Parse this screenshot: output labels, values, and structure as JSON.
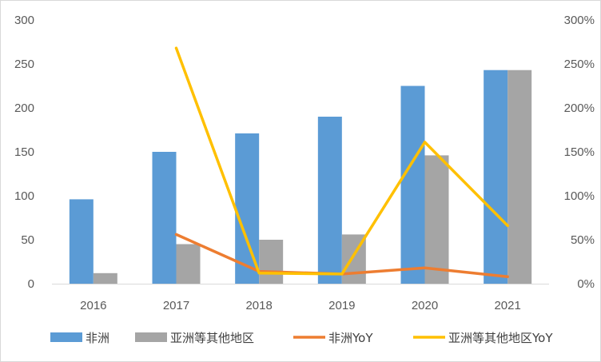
{
  "chart_data": {
    "type": "bar",
    "categories": [
      "2016",
      "2017",
      "2018",
      "2019",
      "2020",
      "2021"
    ],
    "series": [
      {
        "name": "非洲",
        "kind": "bar",
        "axis": "left",
        "color": "#5B9BD5",
        "values": [
          96,
          150,
          171,
          190,
          225,
          243
        ]
      },
      {
        "name": "亚洲等其他地区",
        "kind": "bar",
        "axis": "left",
        "color": "#A5A5A5",
        "values": [
          12,
          45,
          50,
          56,
          146,
          243
        ]
      },
      {
        "name": "非洲YoY",
        "kind": "line",
        "axis": "right",
        "color": "#ED7D31",
        "values": [
          null,
          0.56,
          0.14,
          0.11,
          0.18,
          0.08
        ]
      },
      {
        "name": "亚洲等其他地区YoY",
        "kind": "line",
        "axis": "right",
        "color": "#FFC000",
        "values": [
          null,
          2.68,
          0.12,
          0.11,
          1.61,
          0.66
        ]
      }
    ],
    "y_left": {
      "lim": [
        0,
        300
      ],
      "ticks": [
        "0",
        "50",
        "100",
        "150",
        "200",
        "250",
        "300"
      ]
    },
    "y_right": {
      "lim": [
        0,
        3
      ],
      "ticks": [
        "0%",
        "50%",
        "100%",
        "150%",
        "200%",
        "250%",
        "300%"
      ]
    },
    "grid": false,
    "legend": "bottom"
  }
}
